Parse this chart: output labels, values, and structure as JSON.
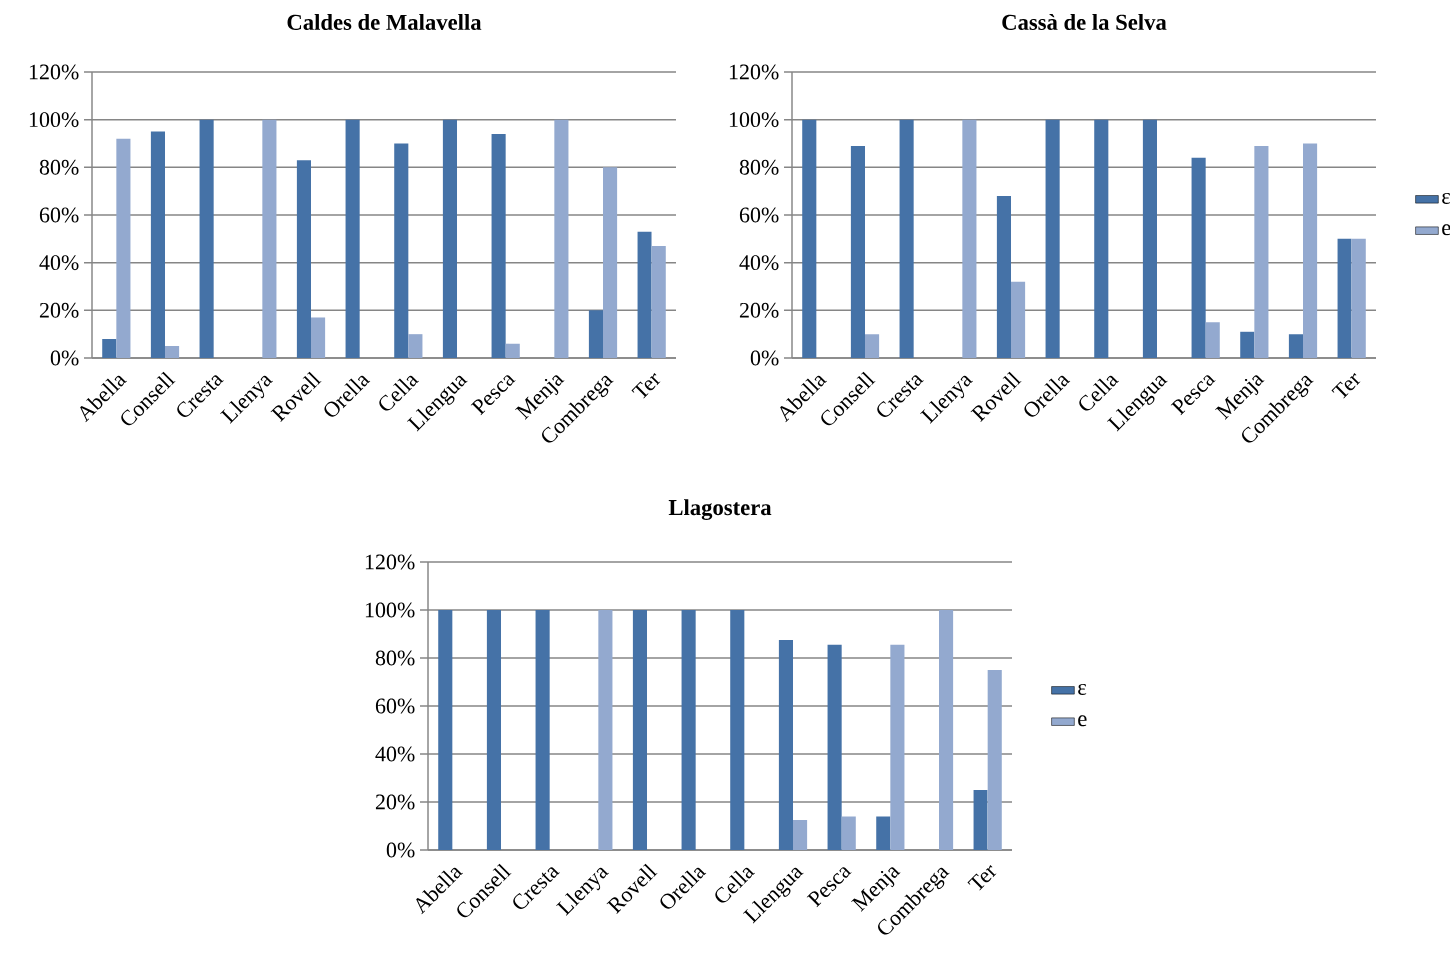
{
  "chart_data": [
    {
      "type": "bar",
      "title": "Caldes de Malavella",
      "categories": [
        "Abella",
        "Consell",
        "Cresta",
        "Llenya",
        "Rovell",
        "Orella",
        "Cella",
        "Llengua",
        "Pesca",
        "Menja",
        "Combrega",
        "Ter"
      ],
      "series": [
        {
          "color": "#4572a7",
          "values": [
            8,
            95,
            100,
            0,
            83,
            100,
            90,
            100,
            94,
            0,
            20,
            53
          ]
        },
        {
          "color": "#93a9cf",
          "values": [
            92,
            5,
            0,
            100,
            17,
            0,
            10,
            0,
            6,
            100,
            80,
            47
          ]
        }
      ],
      "ylim": [
        0,
        120
      ],
      "yticks": [
        {
          "value": 0,
          "label": "0%"
        },
        {
          "value": 20,
          "label": "20%"
        },
        {
          "value": 40,
          "label": "40%"
        },
        {
          "value": 60,
          "label": "60%"
        },
        {
          "value": 80,
          "label": "80%"
        },
        {
          "value": 100,
          "label": "100%"
        },
        {
          "value": 120,
          "label": "120%"
        }
      ],
      "grid": "y",
      "legend": false
    },
    {
      "type": "bar",
      "title": "Cassà de la Selva",
      "categories": [
        "Abella",
        "Consell",
        "Cresta",
        "Llenya",
        "Rovell",
        "Orella",
        "Cella",
        "Llengua",
        "Pesca",
        "Menja",
        "Combrega",
        "Ter"
      ],
      "series": [
        {
          "name": "ε",
          "color": "#4572a7",
          "values": [
            100,
            89,
            100,
            0,
            68,
            100,
            100,
            100,
            84,
            11,
            10,
            50
          ]
        },
        {
          "name": "e",
          "color": "#93a9cf",
          "values": [
            0,
            10,
            0,
            100,
            32,
            0,
            0,
            0,
            15,
            89,
            90,
            50
          ]
        }
      ],
      "ylim": [
        0,
        120
      ],
      "yticks": [
        {
          "value": 0,
          "label": "0%"
        },
        {
          "value": 20,
          "label": "20%"
        },
        {
          "value": 40,
          "label": "40%"
        },
        {
          "value": 60,
          "label": "60%"
        },
        {
          "value": 80,
          "label": "80%"
        },
        {
          "value": 100,
          "label": "100%"
        },
        {
          "value": 120,
          "label": "120%"
        }
      ],
      "grid": "y",
      "legend": "right"
    },
    {
      "type": "bar",
      "title": "Llagostera",
      "categories": [
        "Abella",
        "Consell",
        "Cresta",
        "Llenya",
        "Rovell",
        "Orella",
        "Cella",
        "Llengua",
        "Pesca",
        "Menja",
        "Combrega",
        "Ter"
      ],
      "series": [
        {
          "name": "ε",
          "color": "#4572a7",
          "values": [
            100,
            100,
            100,
            0,
            100,
            100,
            100,
            87.5,
            85.5,
            14,
            0,
            25
          ]
        },
        {
          "name": "e",
          "color": "#93a9cf",
          "values": [
            0,
            0,
            0,
            100,
            0,
            0,
            0,
            12.5,
            14,
            85.5,
            100,
            75
          ]
        }
      ],
      "ylim": [
        0,
        120
      ],
      "yticks": [
        {
          "value": 0,
          "label": "0%"
        },
        {
          "value": 20,
          "label": "20%"
        },
        {
          "value": 40,
          "label": "40%"
        },
        {
          "value": 60,
          "label": "60%"
        },
        {
          "value": 80,
          "label": "80%"
        },
        {
          "value": 100,
          "label": "100%"
        },
        {
          "value": 120,
          "label": "120%"
        }
      ],
      "grid": "y",
      "legend": "right"
    }
  ]
}
